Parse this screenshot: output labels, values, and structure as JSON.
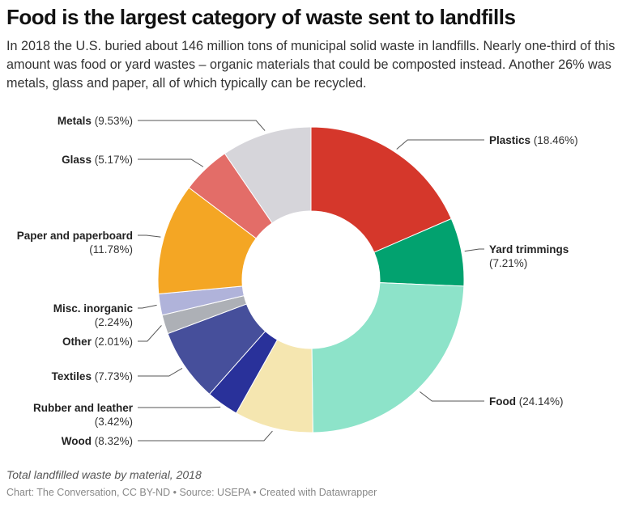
{
  "header": {
    "title": "Food is the largest category of waste sent to landfills",
    "description": "In 2018 the U.S. buried about 146 million tons of municipal solid waste in landfills. Nearly one-third of this amount was food or yard wastes – organic materials that could be composted instead. Another 26% was metals, glass and paper, all of which typically can be recycled."
  },
  "footer": {
    "notes": "Total landfilled waste by material, 2018",
    "byline": "Chart: The Conversation, CC BY-ND • Source: USEPA • Created with Datawrapper"
  },
  "chart_data": {
    "type": "pie",
    "variant": "donut",
    "title": "Food is the largest category of waste sent to landfills",
    "subtitle": "Total landfilled waste by material, 2018",
    "unit": "%",
    "categories": [
      "Plastics",
      "Yard trimmings",
      "Food",
      "Wood",
      "Rubber and leather",
      "Textiles",
      "Other",
      "Misc. inorganic",
      "Paper and paperboard",
      "Glass",
      "Metals"
    ],
    "values": [
      18.46,
      7.21,
      24.14,
      8.32,
      3.42,
      7.73,
      2.01,
      2.24,
      11.78,
      5.17,
      9.53
    ],
    "colors": [
      "#d5372b",
      "#02a26f",
      "#8de3c9",
      "#f5e6b0",
      "#29319a",
      "#464f9b",
      "#adb0b6",
      "#b0b3da",
      "#f4a624",
      "#e36d68",
      "#d6d5da"
    ],
    "labels": [
      {
        "name": "Plastics",
        "pct": "(18.46%)",
        "side": "right"
      },
      {
        "name": "Yard trimmings",
        "pct": "(7.21%)",
        "side": "right"
      },
      {
        "name": "Food",
        "pct": "(24.14%)",
        "side": "right"
      },
      {
        "name": "Wood",
        "pct": "(8.32%)",
        "side": "left"
      },
      {
        "name": "Rubber and leather",
        "pct": "(3.42%)",
        "side": "left"
      },
      {
        "name": "Textiles",
        "pct": "(7.73%)",
        "side": "left"
      },
      {
        "name": "Other",
        "pct": "(2.01%)",
        "side": "left"
      },
      {
        "name": "Misc. inorganic",
        "pct": "(2.24%)",
        "side": "left"
      },
      {
        "name": "Paper and paperboard",
        "pct": "(11.78%)",
        "side": "left"
      },
      {
        "name": "Glass",
        "pct": "(5.17%)",
        "side": "left"
      },
      {
        "name": "Metals",
        "pct": "(9.53%)",
        "side": "left"
      }
    ],
    "start_angle_deg": 0,
    "direction": "clockwise",
    "legend": "none (direct labels)"
  }
}
